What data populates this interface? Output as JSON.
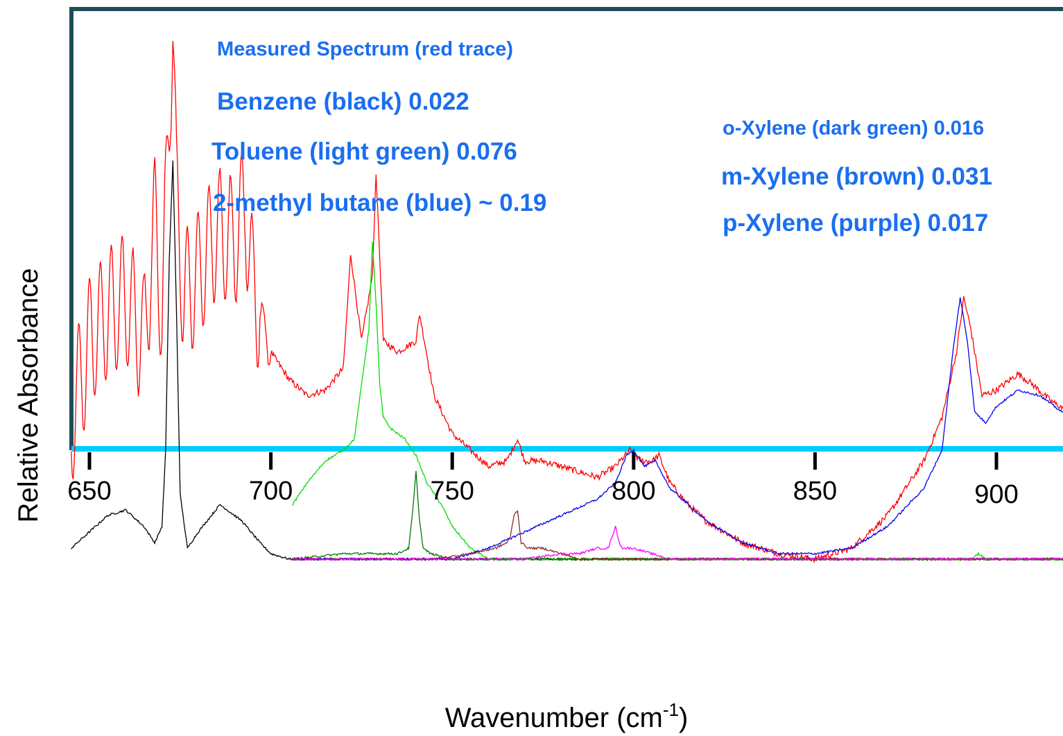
{
  "chart_data": {
    "type": "line",
    "xlabel": "Wavenumber (cm",
    "xlabel_sup": "-1",
    "xlabel_tail": ")",
    "ylabel": "Relative Absorbance",
    "xlim": [
      645,
      920
    ],
    "ylim": [
      0,
      1.0
    ],
    "x_ticks": [
      650,
      700,
      750,
      800,
      850,
      900
    ],
    "x_tick_labels": [
      "650",
      "700",
      "750",
      "800",
      "850",
      "900"
    ],
    "y_ticks_shown": false,
    "grid": false,
    "legend": "none (inline text annotations)",
    "annotations": [
      {
        "key": "measured",
        "text": "Measured Spectrum (red trace)"
      },
      {
        "key": "benzene",
        "text": "Benzene (black) 0.022"
      },
      {
        "key": "toluene",
        "text": "Toluene (light green) 0.076"
      },
      {
        "key": "methylbutane",
        "text": "2-methyl butane (blue) ~ 0.19"
      },
      {
        "key": "oxylene",
        "text": "o-Xylene (dark green) 0.016"
      },
      {
        "key": "mxylene",
        "text": "m-Xylene (brown) 0.031"
      },
      {
        "key": "pxylene",
        "text": "p-Xylene (purple) 0.017"
      }
    ],
    "series": [
      {
        "color": "#ff0000",
        "x": [
          645,
          650,
          655,
          660,
          665,
          668,
          670,
          672,
          673,
          674,
          676,
          680,
          685,
          690,
          693,
          695,
          700,
          705,
          710,
          715,
          720,
          722,
          725,
          728,
          729,
          731,
          735,
          740,
          741,
          745,
          750,
          755,
          760,
          765,
          768,
          770,
          775,
          780,
          785,
          790,
          795,
          799,
          802,
          805,
          807,
          810,
          815,
          820,
          830,
          840,
          850,
          860,
          870,
          880,
          885,
          889,
          891,
          893,
          896,
          900,
          906,
          910,
          915,
          920
        ],
        "y": [
          0.25,
          0.4,
          0.45,
          0.48,
          0.4,
          0.62,
          0.45,
          0.82,
          1.0,
          0.65,
          0.48,
          0.52,
          0.6,
          0.58,
          0.65,
          0.5,
          0.38,
          0.33,
          0.3,
          0.31,
          0.35,
          0.56,
          0.4,
          0.52,
          0.71,
          0.4,
          0.38,
          0.4,
          0.45,
          0.3,
          0.23,
          0.2,
          0.17,
          0.18,
          0.22,
          0.18,
          0.18,
          0.17,
          0.16,
          0.15,
          0.17,
          0.2,
          0.18,
          0.18,
          0.19,
          0.14,
          0.1,
          0.07,
          0.03,
          0.01,
          0.0,
          0.02,
          0.08,
          0.18,
          0.26,
          0.38,
          0.48,
          0.42,
          0.3,
          0.31,
          0.34,
          0.32,
          0.29,
          0.27
        ]
      },
      {
        "color": "#000000",
        "x": [
          645,
          650,
          655,
          660,
          665,
          668,
          670,
          671,
          672,
          673,
          674,
          675,
          677,
          680,
          686,
          692,
          697,
          700,
          705,
          710,
          730,
          750,
          780,
          800,
          850,
          880,
          920
        ],
        "y": [
          0.02,
          0.05,
          0.08,
          0.09,
          0.06,
          0.03,
          0.06,
          0.2,
          0.55,
          0.73,
          0.45,
          0.12,
          0.02,
          0.05,
          0.1,
          0.07,
          0.03,
          0.01,
          0.0,
          0.0,
          0.0,
          0.0,
          0.0,
          0.0,
          0.0,
          0.0,
          0.0
        ]
      },
      {
        "color": "#00dd00",
        "x": [
          706,
          710,
          715,
          720,
          723,
          725,
          727,
          728,
          729,
          730,
          731,
          733,
          737,
          740,
          743,
          747,
          750,
          755,
          760,
          770,
          800,
          850,
          893,
          895,
          897,
          900,
          920
        ],
        "y": [
          0.1,
          0.14,
          0.18,
          0.2,
          0.22,
          0.32,
          0.42,
          0.58,
          0.47,
          0.32,
          0.26,
          0.24,
          0.22,
          0.19,
          0.14,
          0.1,
          0.06,
          0.02,
          0.0,
          0.0,
          0.0,
          0.0,
          0.0,
          0.01,
          0.0,
          0.0,
          0.0
        ]
      },
      {
        "color": "#0000ee",
        "x": [
          706,
          720,
          740,
          750,
          755,
          760,
          770,
          780,
          790,
          795,
          798,
          800,
          803,
          806,
          810,
          820,
          830,
          840,
          850,
          860,
          870,
          880,
          885,
          888,
          890,
          892,
          894,
          897,
          900,
          906,
          912,
          916,
          920
        ],
        "y": [
          0.0,
          0.0,
          0.0,
          0.0,
          0.01,
          0.02,
          0.05,
          0.08,
          0.11,
          0.14,
          0.19,
          0.2,
          0.17,
          0.18,
          0.13,
          0.07,
          0.03,
          0.01,
          0.01,
          0.02,
          0.06,
          0.13,
          0.2,
          0.38,
          0.48,
          0.4,
          0.27,
          0.25,
          0.28,
          0.31,
          0.3,
          0.28,
          0.26
        ]
      },
      {
        "color": "#007700",
        "x": [
          706,
          720,
          735,
          738,
          739,
          740,
          741,
          742,
          744,
          750,
          760,
          800,
          850,
          900,
          920
        ],
        "y": [
          0.0,
          0.01,
          0.01,
          0.02,
          0.08,
          0.16,
          0.07,
          0.02,
          0.01,
          0.0,
          0.0,
          0.0,
          0.0,
          0.0,
          0.0
        ]
      },
      {
        "color": "#8b2b2b",
        "x": [
          706,
          730,
          745,
          755,
          762,
          765,
          766,
          767,
          768,
          769,
          771,
          775,
          780,
          785,
          790,
          800,
          850,
          920
        ],
        "y": [
          0.0,
          0.0,
          0.0,
          0.01,
          0.02,
          0.03,
          0.04,
          0.08,
          0.09,
          0.03,
          0.02,
          0.02,
          0.01,
          0.0,
          0.0,
          0.0,
          0.0,
          0.0
        ]
      },
      {
        "color": "#ff00ff",
        "x": [
          706,
          770,
          780,
          785,
          790,
          793,
          794,
          795,
          796,
          797,
          800,
          805,
          810,
          850,
          920
        ],
        "y": [
          0.0,
          0.0,
          0.01,
          0.01,
          0.02,
          0.02,
          0.04,
          0.06,
          0.03,
          0.02,
          0.02,
          0.01,
          0.0,
          0.0,
          0.0
        ]
      }
    ]
  }
}
